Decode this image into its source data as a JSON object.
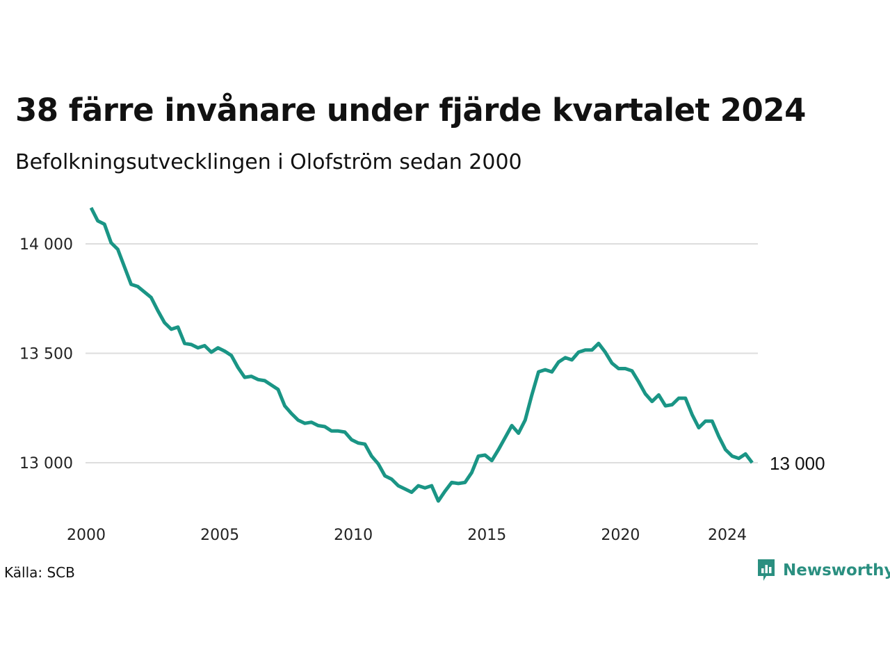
{
  "title": "38 färre invånare under fjärde kvartalet 2024",
  "subtitle": "Befolkningsutvecklingen i Olofström sedan 2000",
  "source": "Källa: SCB",
  "brand": {
    "name": "Newsworthy",
    "icon": "newsworthy-logo-icon"
  },
  "colors": {
    "line": "#1a9585",
    "grid": "#dddddd",
    "brand": "#2a8f80"
  },
  "chart_data": {
    "type": "line",
    "title": "38 färre invånare under fjärde kvartalet 2024",
    "subtitle": "Befolkningsutvecklingen i Olofström sedan 2000",
    "xlabel": "",
    "ylabel": "",
    "xlim": [
      2000.0,
      2025.0
    ],
    "ylim": [
      12800,
      14200
    ],
    "y_ticks": [
      13000,
      13500,
      14000
    ],
    "y_tick_labels": [
      "13 000",
      "13 500",
      "14 000"
    ],
    "x_ticks": [
      2000,
      2005,
      2010,
      2015,
      2020,
      2024
    ],
    "x_tick_labels": [
      "2000",
      "2005",
      "2010",
      "2015",
      "2020",
      "2024"
    ],
    "grid": "horizontal",
    "end_label": "13 000",
    "series": [
      {
        "x": [
          2000.0,
          2000.25,
          2000.5,
          2000.75,
          2001.0,
          2001.25,
          2001.5,
          2001.75,
          2002.0,
          2002.25,
          2002.5,
          2002.75,
          2003.0,
          2003.25,
          2003.5,
          2003.75,
          2004.0,
          2004.25,
          2004.5,
          2004.75,
          2005.0,
          2005.25,
          2005.5,
          2005.75,
          2006.0,
          2006.25,
          2006.5,
          2006.75,
          2007.0,
          2007.25,
          2007.5,
          2007.75,
          2008.0,
          2008.25,
          2008.5,
          2008.75,
          2009.0,
          2009.25,
          2009.5,
          2009.75,
          2010.0,
          2010.25,
          2010.5,
          2010.75,
          2011.0,
          2011.25,
          2011.5,
          2011.75,
          2012.0,
          2012.25,
          2012.5,
          2012.75,
          2013.0,
          2013.25,
          2013.5,
          2013.75,
          2014.0,
          2014.25,
          2014.5,
          2014.75,
          2015.0,
          2015.25,
          2015.5,
          2015.75,
          2016.0,
          2016.25,
          2016.5,
          2016.75,
          2017.0,
          2017.25,
          2017.5,
          2017.75,
          2018.0,
          2018.25,
          2018.5,
          2018.75,
          2019.0,
          2019.25,
          2019.5,
          2019.75,
          2020.0,
          2020.25,
          2020.5,
          2020.75,
          2021.0,
          2021.25,
          2021.5,
          2021.75,
          2022.0,
          2022.25,
          2022.5,
          2022.75,
          2023.0,
          2023.25,
          2023.5,
          2023.75,
          2024.0,
          2024.25,
          2024.5,
          2024.75
        ],
        "values": [
          14165,
          14105,
          14090,
          14005,
          13975,
          13895,
          13815,
          13805,
          13780,
          13755,
          13695,
          13640,
          13610,
          13620,
          13545,
          13540,
          13525,
          13535,
          13505,
          13525,
          13510,
          13490,
          13435,
          13390,
          13395,
          13380,
          13375,
          13355,
          13335,
          13260,
          13225,
          13195,
          13180,
          13185,
          13170,
          13165,
          13145,
          13145,
          13140,
          13105,
          13090,
          13085,
          13030,
          12995,
          12940,
          12925,
          12895,
          12880,
          12865,
          12895,
          12885,
          12895,
          12825,
          12870,
          12910,
          12905,
          12910,
          12955,
          13030,
          13035,
          13010,
          13060,
          13115,
          13170,
          13135,
          13195,
          13310,
          13415,
          13425,
          13415,
          13460,
          13480,
          13470,
          13505,
          13515,
          13515,
          13545,
          13505,
          13455,
          13430,
          13430,
          13420,
          13370,
          13315,
          13280,
          13310,
          13260,
          13265,
          13295,
          13295,
          13220,
          13160,
          13190,
          13190,
          13120,
          13060,
          13030,
          13020,
          13040,
          13000
        ]
      }
    ]
  }
}
